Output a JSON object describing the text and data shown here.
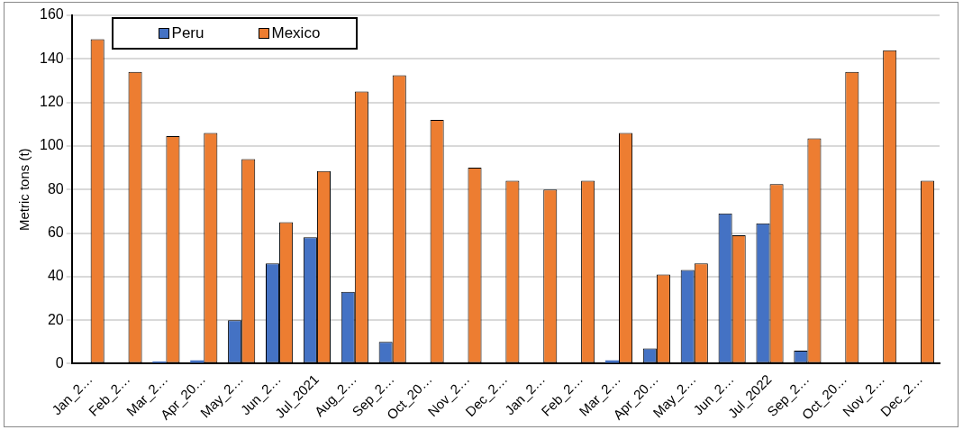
{
  "chart_data": {
    "type": "bar",
    "ylabel": "Metric tons (t)",
    "categories": [
      "Jan_2…",
      "Feb_2…",
      "Mar_2…",
      "Apr_20…",
      "May_2…",
      "Jun_2…",
      "Jul_2021",
      "Aug_2…",
      "Sep_2…",
      "Oct_20…",
      "Nov_2…",
      "Dec_2…",
      "Jan_2…",
      "Feb_2…",
      "Mar_2…",
      "Apr_20…",
      "May_2…",
      "Jun_2…",
      "Jul_2022",
      "Sep_2…",
      "Oct_20…",
      "Nov_2…",
      "Dec_2…"
    ],
    "series": [
      {
        "name": "Peru",
        "color": "#4472c4",
        "values": [
          0,
          0,
          1,
          1.5,
          20,
          46,
          58,
          33,
          10,
          0,
          0,
          0,
          0,
          0,
          1.5,
          7,
          43,
          69,
          64.5,
          6,
          0,
          0,
          0
        ]
      },
      {
        "name": "Mexico",
        "color": "#ed7d31",
        "values": [
          149,
          134,
          104.5,
          106,
          94,
          65,
          88.5,
          125,
          132.5,
          112,
          90,
          84,
          80,
          84,
          106,
          41,
          46,
          59,
          82.5,
          103.5,
          134,
          144,
          84
        ]
      }
    ],
    "ylim": [
      0,
      160
    ],
    "yticks": [
      0,
      20,
      40,
      60,
      80,
      100,
      120,
      140,
      160
    ],
    "grid": "y",
    "legend": "top left"
  }
}
